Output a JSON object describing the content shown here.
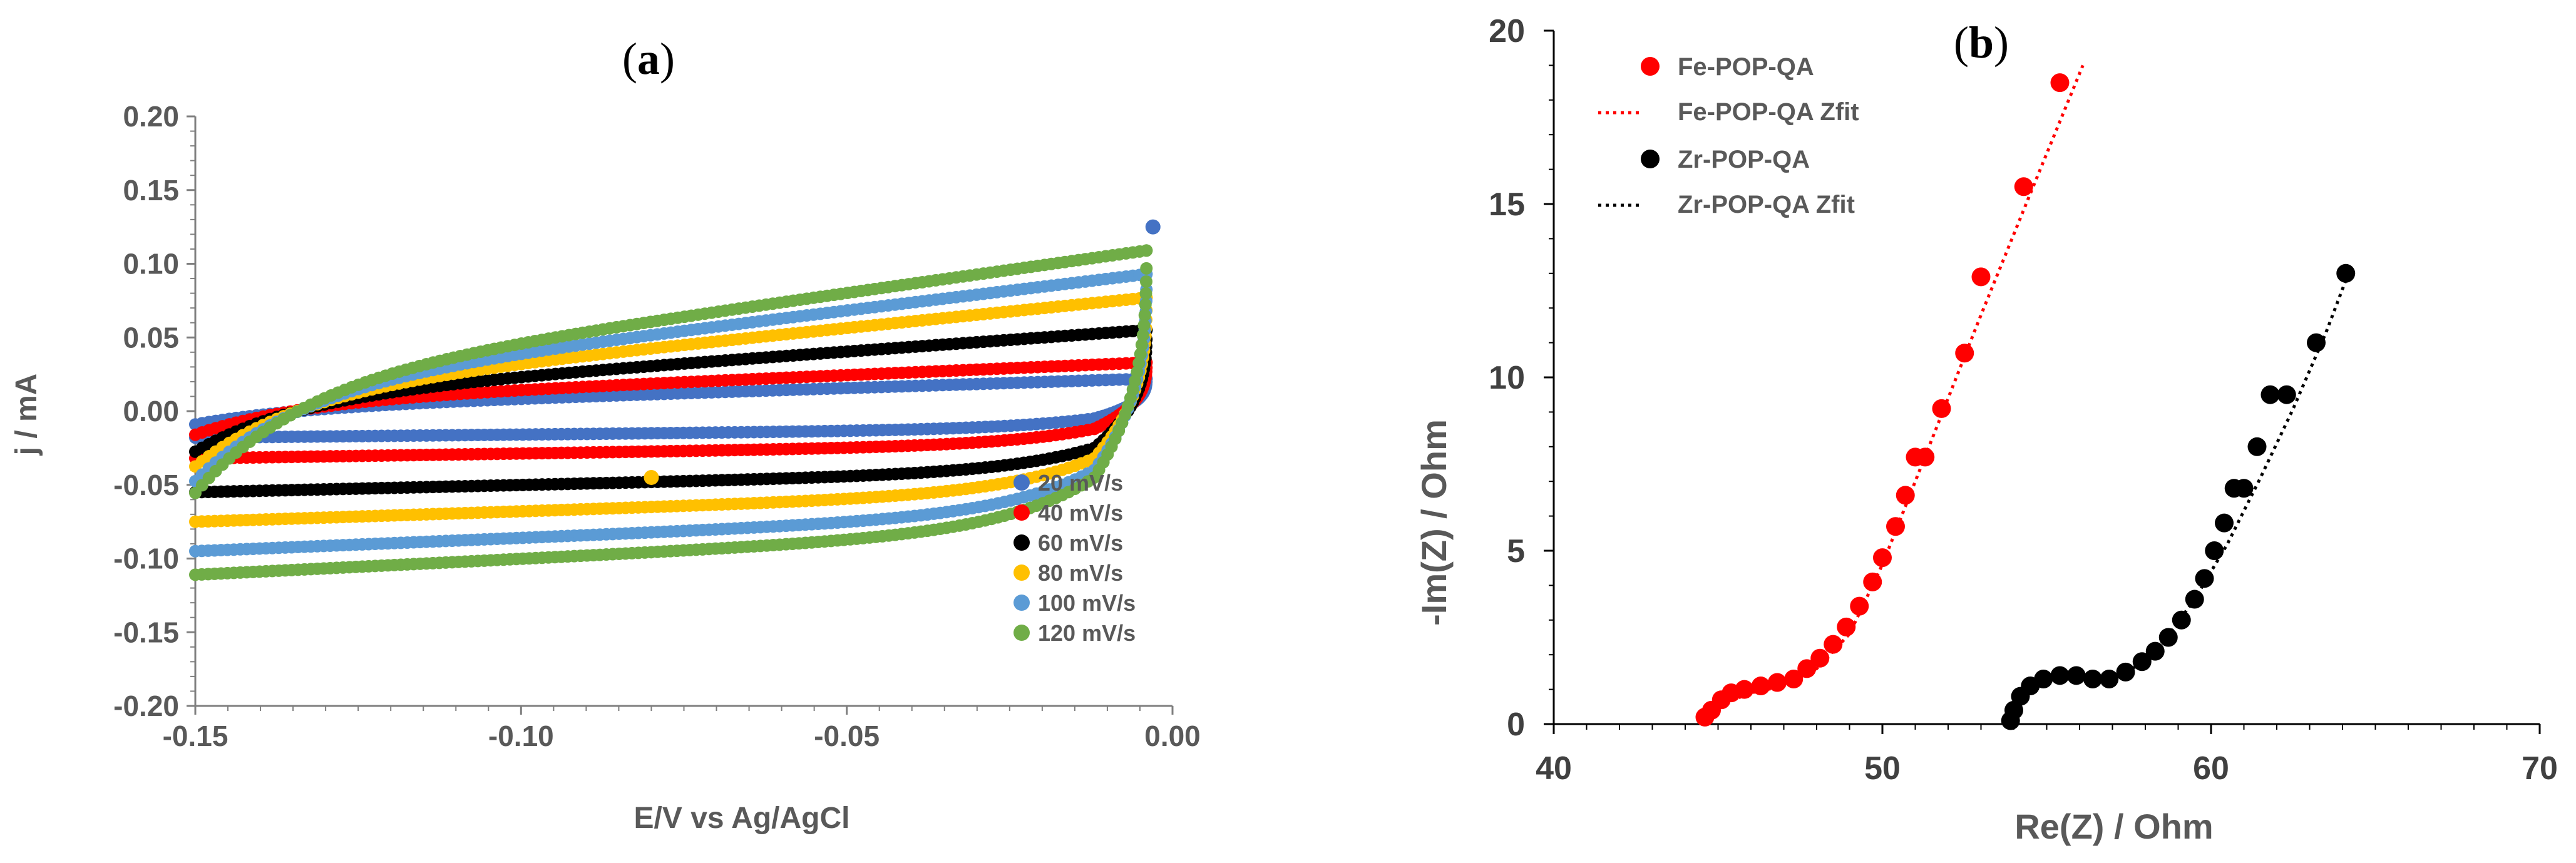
{
  "chart_data": [
    {
      "type": "scatter",
      "panel_label": "a",
      "title": "",
      "xlabel": "E/V vs Ag/AgCl",
      "ylabel": "j / mA",
      "xlim": [
        -0.15,
        0.0
      ],
      "ylim": [
        -0.2,
        0.2
      ],
      "xticks": [
        -0.15,
        -0.1,
        -0.05,
        0.0
      ],
      "xtick_labels": [
        "-0.15",
        "-0.10",
        "-0.05",
        "0.00"
      ],
      "yticks": [
        -0.2,
        -0.15,
        -0.1,
        -0.05,
        0.0,
        0.05,
        0.1,
        0.15,
        0.2
      ],
      "ytick_labels": [
        "-0.20",
        "-0.15",
        "-0.10",
        "-0.05",
        "0.00",
        "0.05",
        "0.10",
        "0.15",
        "0.20"
      ],
      "grid": false,
      "legend_position": "bottom-right",
      "series": [
        {
          "name": "20 mV/s",
          "color": "#4472C4",
          "upper_start": 0.002,
          "upper_end": 0.022,
          "lower_start": -0.018,
          "lower_end": -0.005,
          "outlier": [
            -0.003,
            0.125
          ]
        },
        {
          "name": "40 mV/s",
          "color": "#FF0000",
          "upper_start": 0.006,
          "upper_end": 0.033,
          "lower_start": -0.032,
          "lower_end": -0.012
        },
        {
          "name": "60 mV/s",
          "color": "#000000",
          "upper_start": 0.009,
          "upper_end": 0.055,
          "lower_start": -0.055,
          "lower_end": -0.025
        },
        {
          "name": "80 mV/s",
          "color": "#FFC000",
          "upper_start": 0.012,
          "upper_end": 0.077,
          "lower_start": -0.075,
          "lower_end": -0.032,
          "outlier": [
            -0.08,
            -0.045
          ]
        },
        {
          "name": "100 mV/s",
          "color": "#5B9BD5",
          "upper_start": 0.015,
          "upper_end": 0.093,
          "lower_start": -0.095,
          "lower_end": -0.04
        },
        {
          "name": "120 mV/s",
          "color": "#70AD47",
          "upper_start": 0.018,
          "upper_end": 0.109,
          "lower_start": -0.111,
          "lower_end": -0.045
        }
      ]
    },
    {
      "type": "scatter",
      "panel_label": "b",
      "title": "",
      "xlabel": "Re(Z) / Ohm",
      "ylabel": "-Im(Z) / Ohm",
      "xlim": [
        40,
        70
      ],
      "ylim": [
        0,
        20
      ],
      "xticks": [
        40,
        50,
        60,
        70
      ],
      "xtick_labels": [
        "40",
        "50",
        "60",
        "70"
      ],
      "yticks": [
        0,
        5,
        10,
        15,
        20
      ],
      "ytick_labels": [
        "0",
        "5",
        "10",
        "15",
        "20"
      ],
      "grid": false,
      "legend_position": "top-left",
      "series": [
        {
          "name": "Fe-POP-QA",
          "color": "#FF0000",
          "kind": "points",
          "x": [
            44.6,
            44.8,
            45.1,
            45.4,
            45.8,
            46.3,
            46.8,
            47.3,
            47.7,
            48.1,
            48.5,
            48.9,
            49.3,
            49.7,
            50.0,
            50.4,
            50.7,
            51.0,
            51.3,
            51.8,
            52.5,
            53.0,
            54.3,
            55.4
          ],
          "y": [
            0.2,
            0.4,
            0.7,
            0.9,
            1.0,
            1.1,
            1.2,
            1.3,
            1.6,
            1.9,
            2.3,
            2.8,
            3.4,
            4.1,
            4.8,
            5.7,
            6.6,
            7.7,
            7.7,
            9.1,
            10.7,
            12.9,
            15.5,
            18.5
          ]
        },
        {
          "name": "Fe-POP-QA Zfit",
          "color": "#FF0000",
          "kind": "line",
          "x": [
            44.6,
            45.2,
            46.0,
            47.0,
            48.0,
            49.0,
            50.0,
            51.5,
            53.0,
            54.5,
            56.1
          ],
          "y": [
            0.3,
            0.6,
            0.9,
            1.1,
            1.6,
            2.6,
            4.6,
            8.2,
            11.8,
            15.3,
            19.0
          ]
        },
        {
          "name": "Zr-POP-QA",
          "color": "#000000",
          "kind": "points",
          "x": [
            53.9,
            54.0,
            54.2,
            54.5,
            54.9,
            55.4,
            55.9,
            56.4,
            56.9,
            57.4,
            57.9,
            58.3,
            58.7,
            59.1,
            59.5,
            59.8,
            60.1,
            60.4,
            60.7,
            61.0,
            61.4,
            61.8,
            62.3,
            63.2,
            64.1
          ],
          "y": [
            0.1,
            0.4,
            0.8,
            1.1,
            1.3,
            1.4,
            1.4,
            1.3,
            1.3,
            1.5,
            1.8,
            2.1,
            2.5,
            3.0,
            3.6,
            4.2,
            5.0,
            5.8,
            6.8,
            6.8,
            8.0,
            9.5,
            9.5,
            11.0,
            13.0
          ]
        },
        {
          "name": "Zr-POP-QA Zfit",
          "color": "#000000",
          "kind": "line",
          "x": [
            53.9,
            54.5,
            55.5,
            56.5,
            57.5,
            58.5,
            59.5,
            60.5,
            61.5,
            62.5,
            63.5,
            64.1
          ],
          "y": [
            0.2,
            1.0,
            1.4,
            1.3,
            1.5,
            2.3,
            3.6,
            5.2,
            7.1,
            9.1,
            11.3,
            12.8
          ]
        }
      ]
    }
  ]
}
